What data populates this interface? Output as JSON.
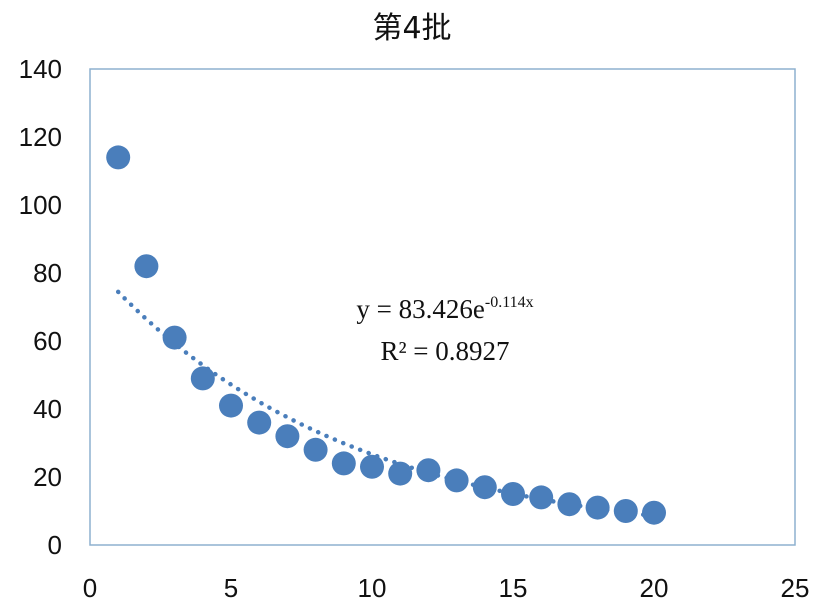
{
  "chart_data": {
    "type": "scatter",
    "title": "第4批",
    "xlabel": "",
    "ylabel": "",
    "xlim": [
      0,
      25
    ],
    "ylim": [
      0,
      140
    ],
    "x_ticks": [
      0,
      5,
      10,
      15,
      20,
      25
    ],
    "y_ticks": [
      0,
      20,
      40,
      60,
      80,
      100,
      120,
      140
    ],
    "grid": false,
    "legend": "none",
    "marker_color": "#4a7ebb",
    "trendline_color": "#4a7ebb",
    "series": [
      {
        "x": [
          1,
          2,
          3,
          4,
          5,
          6,
          7,
          8,
          9,
          10,
          11,
          12,
          13,
          14,
          15,
          16,
          17,
          18,
          19,
          20
        ],
        "y": [
          114,
          82,
          61,
          49,
          41,
          36,
          32,
          28,
          24,
          23,
          21,
          22,
          19,
          17,
          15,
          14,
          12,
          11,
          10,
          9.5
        ]
      }
    ],
    "trendline": {
      "type": "exponential",
      "a": 83.426,
      "b": -0.114,
      "x_range": [
        1,
        20
      ],
      "equation_main": "y = 83.426e",
      "equation_exp": "-0.114x",
      "r_squared_label": "R² = 0.8927"
    }
  }
}
